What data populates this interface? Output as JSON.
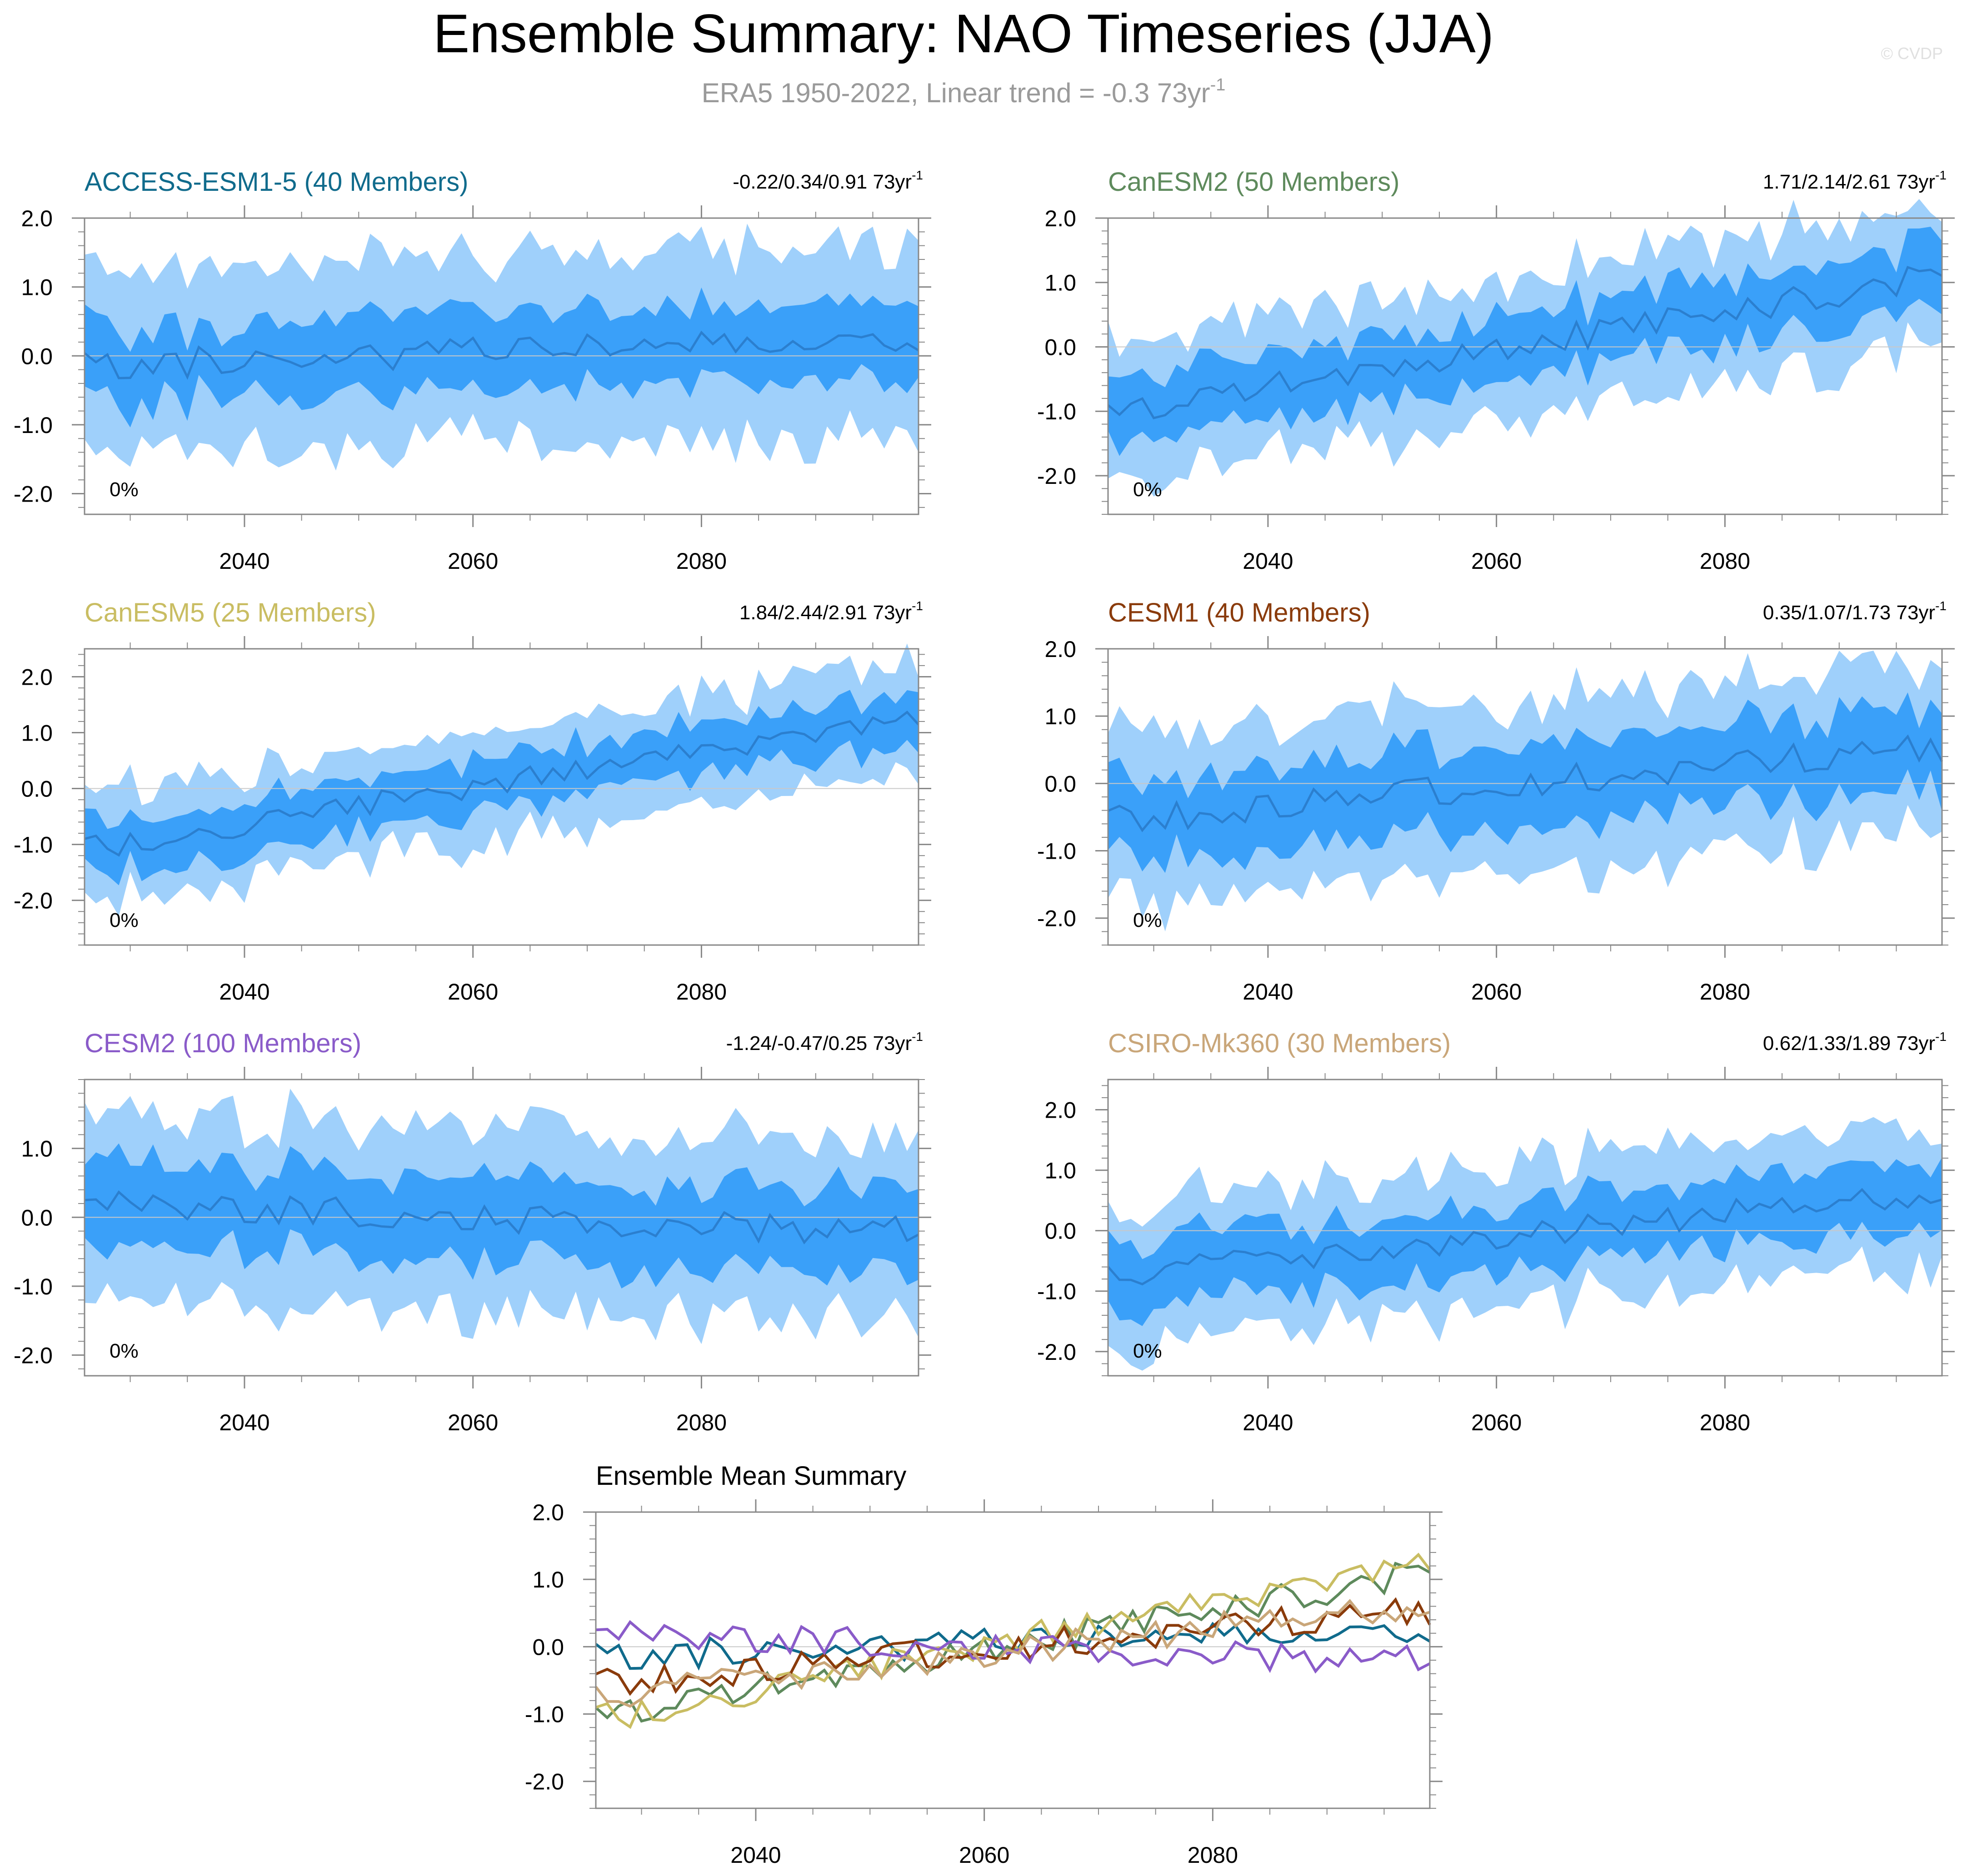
{
  "header": {
    "title": "Ensemble Summary: NAO Timeseries (JJA)",
    "subtitle": "ERA5 1950-2022, Linear trend = -0.3 73yr",
    "subtitle_sup": "-1",
    "credit": "© CVDP"
  },
  "colors": {
    "band_outer": "#9fd0fb",
    "band_inner": "#3aa0f9",
    "mean_line": "#2b7fcf",
    "zero_line": "#c8c8c8"
  },
  "chart_data": [
    {
      "type": "area",
      "title": "ACCESS-ESM1-5 (40 Members)",
      "title_color": "#106b8c",
      "trend": "-0.22/0.34/0.91 73yr",
      "trend_sup": "-1",
      "pct": "0%",
      "x_range": [
        2026,
        2099
      ],
      "ylim": [
        -2.3,
        2.0
      ],
      "yticks": [
        2.0,
        1.0,
        0.0,
        -1.0,
        -2.0
      ],
      "ytick_labels": [
        "2.0",
        "1.0",
        "0.0",
        "-1.0",
        "-2.0"
      ],
      "xticks": [
        2040,
        2060,
        2080
      ],
      "xtick_labels": [
        "2040",
        "2060",
        "2080"
      ],
      "mean_start": -0.15,
      "mean_end": 0.25,
      "inner_half": 0.55,
      "outer_half": 1.25,
      "seed": 11
    },
    {
      "type": "area",
      "title": "CanESM2 (50 Members)",
      "title_color": "#5e8a5c",
      "trend": "1.71/2.14/2.61 73yr",
      "trend_sup": "-1",
      "pct": "0%",
      "x_range": [
        2026,
        2099
      ],
      "ylim": [
        -2.6,
        2.0
      ],
      "yticks": [
        2.0,
        1.0,
        0.0,
        -1.0,
        -2.0
      ],
      "ytick_labels": [
        "2.0",
        "1.0",
        "0.0",
        "-1.0",
        "-2.0"
      ],
      "xticks": [
        2040,
        2060,
        2080
      ],
      "xtick_labels": [
        "2040",
        "2060",
        "2080"
      ],
      "mean_start": -1.0,
      "mean_end": 1.1,
      "inner_half": 0.5,
      "outer_half": 1.0,
      "seed": 23
    },
    {
      "type": "area",
      "title": "CanESM5 (25 Members)",
      "title_color": "#c9bd62",
      "trend": "1.84/2.44/2.91 73yr",
      "trend_sup": "-1",
      "pct": "0%",
      "x_range": [
        2026,
        2099
      ],
      "ylim": [
        -2.8,
        2.5
      ],
      "yticks": [
        2.0,
        1.0,
        0.0,
        -1.0,
        -2.0
      ],
      "ytick_labels": [
        "2.0",
        "1.0",
        "0.0",
        "-1.0",
        "-2.0"
      ],
      "xticks": [
        2040,
        2060,
        2080
      ],
      "xtick_labels": [
        "2040",
        "2060",
        "2080"
      ],
      "mean_start": -1.1,
      "mean_end": 1.3,
      "inner_half": 0.45,
      "outer_half": 0.85,
      "seed": 37
    },
    {
      "type": "area",
      "title": "CESM1 (40 Members)",
      "title_color": "#8a3b0b",
      "trend": "0.35/1.07/1.73 73yr",
      "trend_sup": "-1",
      "pct": "0%",
      "x_range": [
        2026,
        2099
      ],
      "ylim": [
        -2.4,
        2.0
      ],
      "yticks": [
        2.0,
        1.0,
        0.0,
        -1.0,
        -2.0
      ],
      "ytick_labels": [
        "2.0",
        "1.0",
        "0.0",
        "-1.0",
        "-2.0"
      ],
      "xticks": [
        2040,
        2060,
        2080
      ],
      "xtick_labels": [
        "2040",
        "2060",
        "2080"
      ],
      "mean_start": -0.55,
      "mean_end": 0.55,
      "inner_half": 0.6,
      "outer_half": 1.15,
      "seed": 41
    },
    {
      "type": "area",
      "title": "CESM2 (100 Members)",
      "title_color": "#8a5bc9",
      "trend": "-1.24/-0.47/0.25 73yr",
      "trend_sup": "-1",
      "pct": "0%",
      "x_range": [
        2026,
        2099
      ],
      "ylim": [
        -2.3,
        2.0
      ],
      "yticks": [
        1.0,
        0.0,
        -1.0,
        -2.0
      ],
      "ytick_labels": [
        "1.0",
        "0.0",
        "-1.0",
        "-2.0"
      ],
      "xticks": [
        2040,
        2060,
        2080
      ],
      "xtick_labels": [
        "2040",
        "2060",
        "2080"
      ],
      "mean_start": 0.2,
      "mean_end": -0.2,
      "inner_half": 0.6,
      "outer_half": 1.2,
      "seed": 53
    },
    {
      "type": "area",
      "title": "CSIRO-Mk360 (30 Members)",
      "title_color": "#c9a679",
      "trend": "0.62/1.33/1.89 73yr",
      "trend_sup": "-1",
      "pct": "0%",
      "x_range": [
        2026,
        2099
      ],
      "ylim": [
        -2.4,
        2.5
      ],
      "yticks": [
        2.0,
        1.0,
        0.0,
        -1.0,
        -2.0
      ],
      "ytick_labels": [
        "2.0",
        "1.0",
        "0.0",
        "-1.0",
        "-2.0"
      ],
      "xticks": [
        2040,
        2060,
        2080
      ],
      "xtick_labels": [
        "2040",
        "2060",
        "2080"
      ],
      "mean_start": -0.75,
      "mean_end": 0.65,
      "inner_half": 0.55,
      "outer_half": 1.05,
      "seed": 67
    },
    {
      "type": "line",
      "title": "Ensemble Mean Summary",
      "x_range": [
        2026,
        2099
      ],
      "ylim": [
        -2.4,
        2.0
      ],
      "yticks": [
        2.0,
        1.0,
        0.0,
        -1.0,
        -2.0
      ],
      "ytick_labels": [
        "2.0",
        "1.0",
        "0.0",
        "-1.0",
        "-2.0"
      ],
      "xticks": [
        2040,
        2060,
        2080
      ],
      "xtick_labels": [
        "2040",
        "2060",
        "2080"
      ],
      "series": [
        {
          "name": "ACCESS-ESM1-5",
          "color": "#106b8c",
          "start": -0.15,
          "end": 0.25,
          "seed": 11
        },
        {
          "name": "CanESM2",
          "color": "#5e8a5c",
          "start": -1.0,
          "end": 1.1,
          "seed": 23
        },
        {
          "name": "CanESM5",
          "color": "#c9bd62",
          "start": -1.1,
          "end": 1.3,
          "seed": 37
        },
        {
          "name": "CESM1",
          "color": "#8a3b0b",
          "start": -0.55,
          "end": 0.55,
          "seed": 41
        },
        {
          "name": "CESM2",
          "color": "#8a5bc9",
          "start": 0.2,
          "end": -0.2,
          "seed": 53
        },
        {
          "name": "CSIRO-Mk360",
          "color": "#c9a679",
          "start": -0.75,
          "end": 0.65,
          "seed": 67
        }
      ]
    }
  ]
}
